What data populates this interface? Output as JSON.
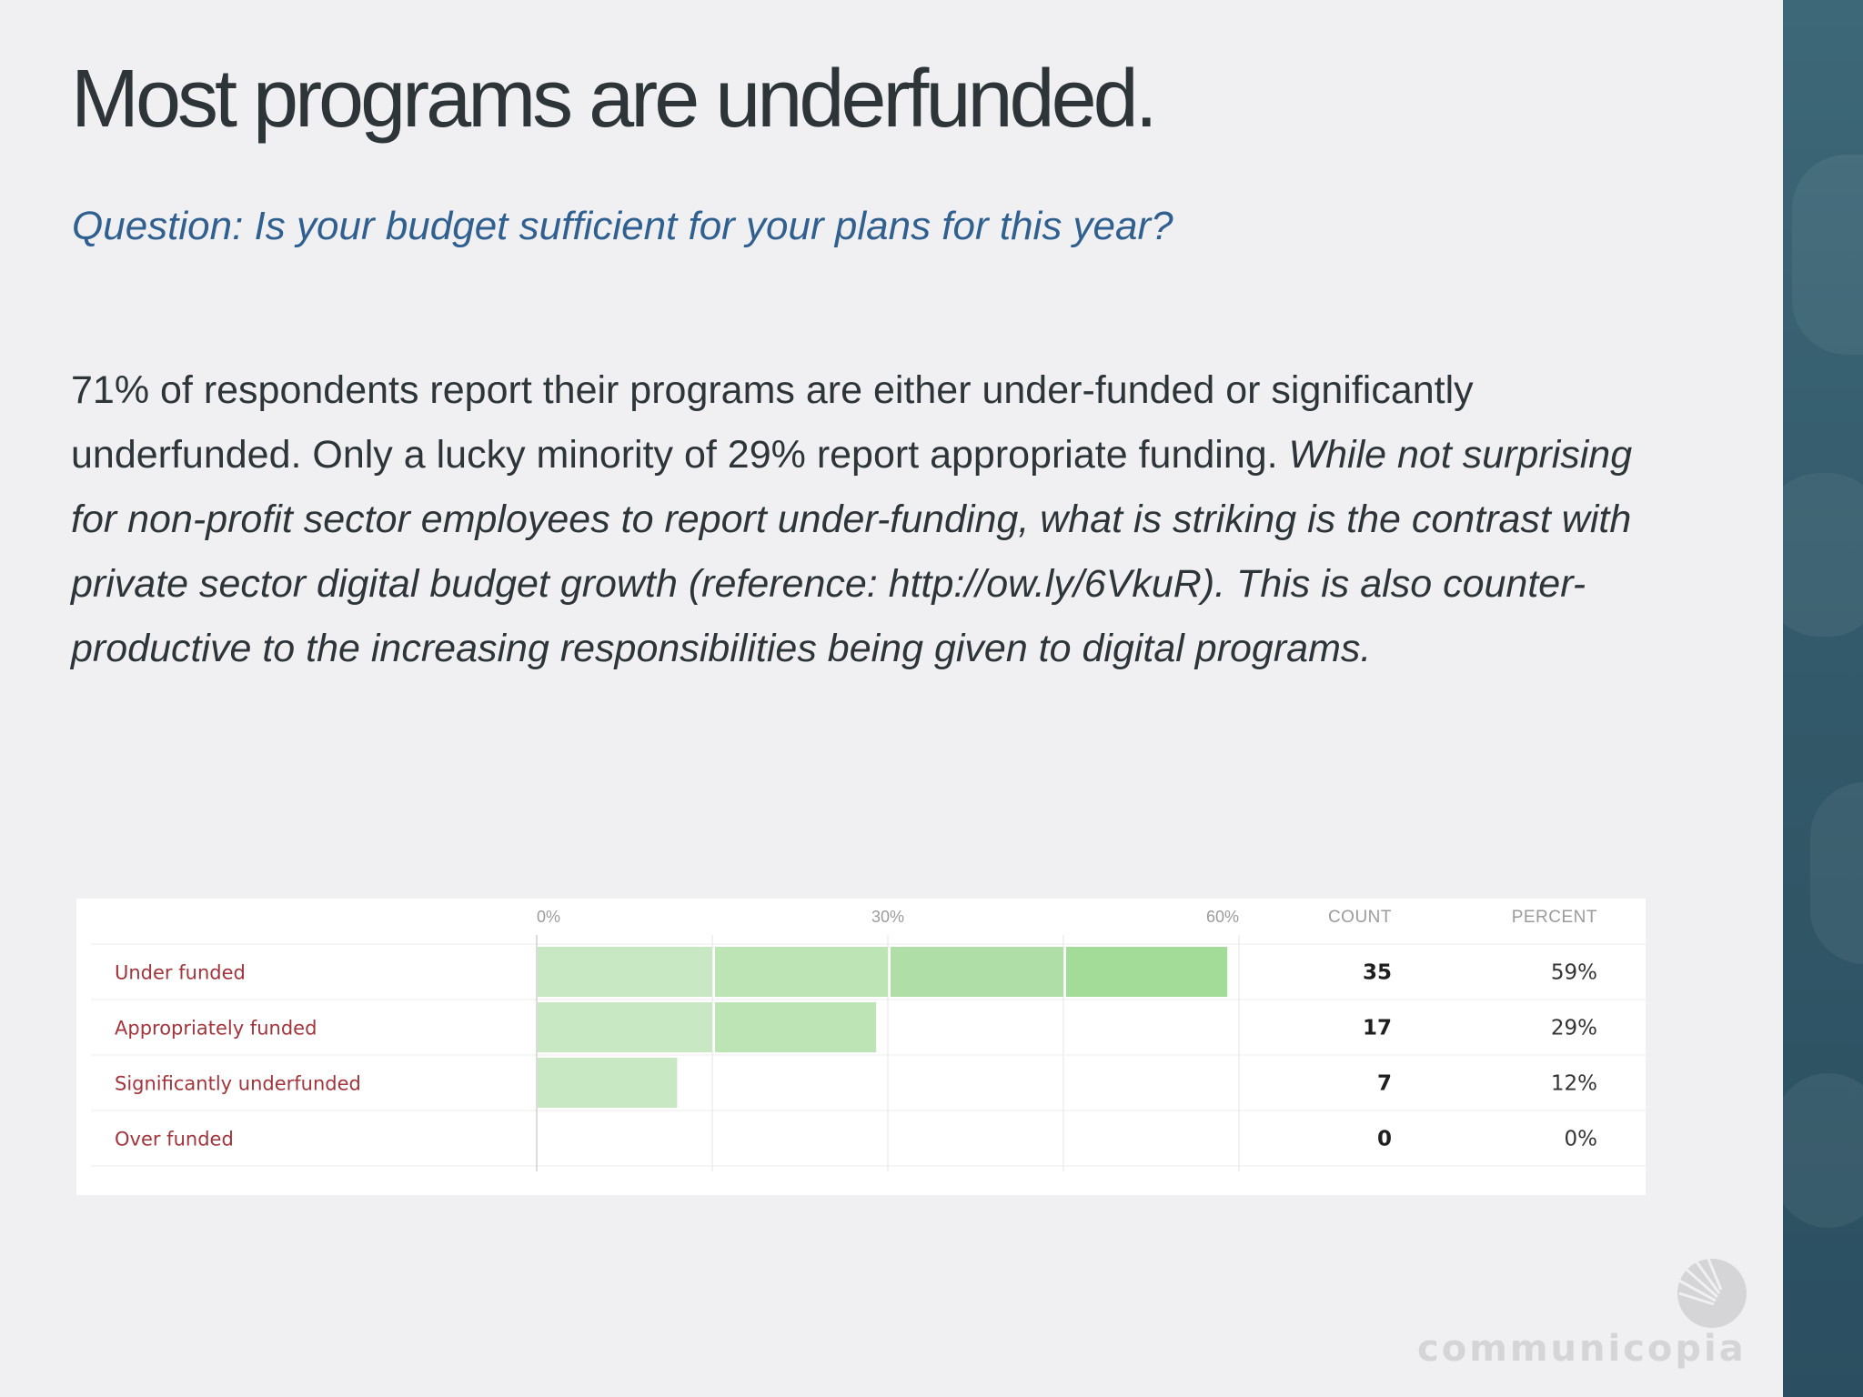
{
  "slide": {
    "title": "Most programs are underfunded.",
    "question": "Question: Is your budget sufficient for your plans for this year?",
    "body_plain": "71% of respondents report their programs are either under-funded or significantly underfunded. Only a lucky minority of 29% report appropriate funding. ",
    "body_italic": "While not surprising for non-profit sector employees to report under-funding, what is striking is the contrast with private sector digital budget growth (reference: http://ow.ly/6VkuR). This is also counter-productive to the increasing responsibilities being given to digital programs.",
    "logo_text": "communicopia"
  },
  "colors": {
    "title": "#2d3538",
    "question": "#30608f",
    "row_label": "#a3343b",
    "bar_light": "#c8e8c3",
    "bar_dark": "#96d68b",
    "side_band": "#335a6a"
  },
  "icons": {
    "logo": "communicopia-logo-icon"
  },
  "chart_data": {
    "type": "bar",
    "orientation": "horizontal",
    "categories": [
      "Under funded",
      "Appropriately funded",
      "Significantly underfunded",
      "Over funded"
    ],
    "values": [
      59,
      29,
      12,
      0
    ],
    "counts": [
      35,
      17,
      7,
      0
    ],
    "percent_labels": [
      "59%",
      "29%",
      "12%",
      "0%"
    ],
    "tick_labels": [
      "0%",
      "30%",
      "60%"
    ],
    "xlim": [
      0,
      60
    ],
    "count_header": "COUNT",
    "percent_header": "PERCENT",
    "grid": true
  }
}
